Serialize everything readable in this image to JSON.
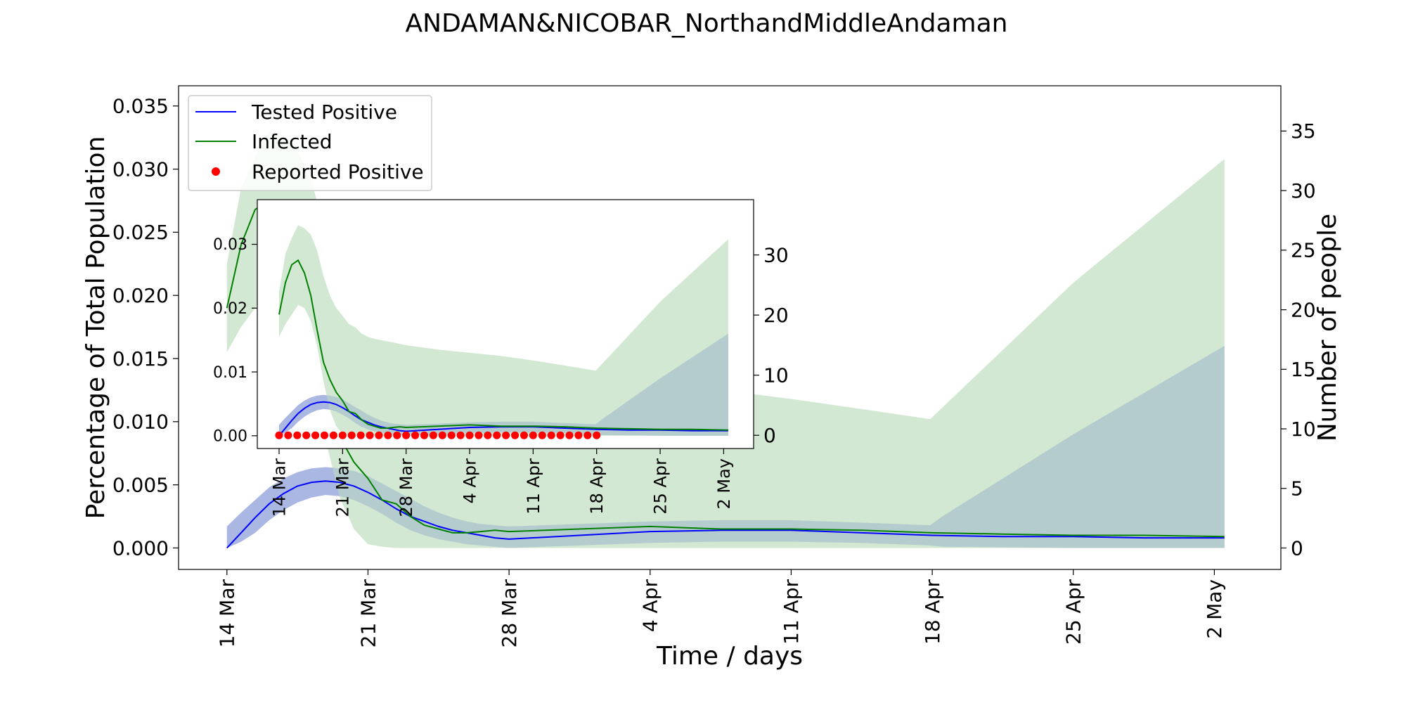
{
  "title": "ANDAMAN&NICOBAR_NorthandMiddleAndaman",
  "colors": {
    "tested": "#0000ff",
    "tested_band": "#b2b2ff",
    "infected": "#008000",
    "infected_band": "#cde5cd",
    "overlap_band": "#a2bbcb",
    "reported": "#ff0000"
  },
  "chart_data": [
    {
      "type": "line",
      "panel": "main",
      "title": "ANDAMAN&NICOBAR_NorthandMiddleAndaman",
      "xlabel": "Time / days",
      "ylabel": "Percentage of Total Population",
      "y2label": "Number of people",
      "x_ticks": [
        {
          "label": "14 Mar",
          "day": 0
        },
        {
          "label": "21 Mar",
          "day": 7
        },
        {
          "label": "28 Mar",
          "day": 14
        },
        {
          "label": "4 Apr",
          "day": 21
        },
        {
          "label": "11 Apr",
          "day": 28
        },
        {
          "label": "18 Apr",
          "day": 35
        },
        {
          "label": "25 Apr",
          "day": 42
        },
        {
          "label": "2 May",
          "day": 49
        }
      ],
      "xlim": [
        -2.4,
        52.3
      ],
      "ylim": [
        -0.0017,
        0.0366
      ],
      "y_ticks": [
        "0.000",
        "0.005",
        "0.010",
        "0.015",
        "0.020",
        "0.025",
        "0.030",
        "0.035"
      ],
      "y2lim": [
        -1.8,
        38.8
      ],
      "y2_ticks": [
        "0",
        "5",
        "10",
        "15",
        "20",
        "25",
        "30",
        "35"
      ],
      "legend": {
        "position": "top-left",
        "entries": [
          "Tested Positive",
          "Infected",
          "Reported Positive"
        ]
      },
      "series": [
        {
          "name": "Tested Positive",
          "color": "#0000ff",
          "x": [
            0,
            0.7,
            1.4,
            2.1,
            2.8,
            3.5,
            4.2,
            4.9,
            5.6,
            6.3,
            7,
            7.7,
            8.4,
            9.1,
            9.8,
            10.5,
            11.2,
            11.9,
            12.6,
            13.3,
            14,
            17.5,
            21,
            24.5,
            28,
            31.5,
            35,
            38.5,
            42,
            45.5,
            49.5
          ],
          "y": [
            0,
            0.0012,
            0.0024,
            0.0035,
            0.0043,
            0.0049,
            0.0052,
            0.0053,
            0.0052,
            0.0049,
            0.0044,
            0.0038,
            0.0031,
            0.0025,
            0.0021,
            0.0017,
            0.0014,
            0.0012,
            0.001,
            0.0008,
            0.0007,
            0.001,
            0.0013,
            0.0014,
            0.0014,
            0.0012,
            0.001,
            0.0009,
            0.0009,
            0.0008,
            0.0008
          ]
        },
        {
          "name": "Infected",
          "color": "#008000",
          "x": [
            0,
            0.7,
            1.4,
            2.1,
            2.8,
            3.5,
            4.2,
            4.9,
            5.6,
            6.3,
            7,
            7.7,
            8.4,
            9.1,
            9.8,
            10.5,
            11.2,
            11.9,
            12.6,
            13.3,
            14,
            17.5,
            21,
            24.5,
            28,
            31.5,
            35,
            38.5,
            42,
            45.5,
            49.5
          ],
          "y": [
            0.019,
            0.024,
            0.0268,
            0.0275,
            0.0255,
            0.022,
            0.0165,
            0.0115,
            0.0088,
            0.0068,
            0.0055,
            0.0038,
            0.0035,
            0.0025,
            0.0018,
            0.0015,
            0.0012,
            0.0012,
            0.0013,
            0.0014,
            0.0013,
            0.0015,
            0.0017,
            0.0015,
            0.0015,
            0.0014,
            0.0012,
            0.0011,
            0.001,
            0.001,
            0.0009
          ]
        }
      ],
      "bands": [
        {
          "of": "Tested Positive",
          "color": "#b2b2ff",
          "x": [
            0,
            0.7,
            1.4,
            2.1,
            2.8,
            3.5,
            4.2,
            4.9,
            5.6,
            6.3,
            7,
            7.7,
            8.4,
            9.1,
            9.8,
            10.5,
            11.2,
            11.9,
            12.6,
            13.3,
            14,
            17.5,
            21,
            24.5,
            28,
            31.5,
            34.9,
            35.5,
            42,
            49.5
          ],
          "upper": [
            0.0017,
            0.0028,
            0.0038,
            0.0048,
            0.0055,
            0.006,
            0.0063,
            0.0064,
            0.0063,
            0.0061,
            0.0057,
            0.0051,
            0.0045,
            0.0039,
            0.0033,
            0.0028,
            0.0024,
            0.0021,
            0.0019,
            0.0018,
            0.0017,
            0.0019,
            0.0021,
            0.0022,
            0.0022,
            0.002,
            0.0018,
            0.0025,
            0.009,
            0.016
          ],
          "lower": [
            0,
            0.0005,
            0.0012,
            0.0022,
            0.003,
            0.0036,
            0.004,
            0.0042,
            0.0041,
            0.0038,
            0.0033,
            0.0027,
            0.002,
            0.0014,
            0.001,
            0.0007,
            0.0005,
            0.0003,
            0.0002,
            0.0001,
            0,
            0.0002,
            0.0004,
            0.0005,
            0.0005,
            0.0004,
            0.0002,
            0.0001,
            0,
            0
          ]
        },
        {
          "of": "Infected",
          "color": "#cde5cd",
          "x": [
            0,
            0.7,
            1.4,
            2.1,
            2.8,
            3.5,
            4.2,
            4.9,
            5.6,
            6.3,
            7,
            7.7,
            8.4,
            9.1,
            9.8,
            10.5,
            11.2,
            11.9,
            12.6,
            13.3,
            14,
            17.5,
            21,
            24.5,
            28,
            31.5,
            34.9,
            42,
            49.5
          ],
          "upper": [
            0.0225,
            0.0285,
            0.031,
            0.033,
            0.0325,
            0.0315,
            0.029,
            0.025,
            0.022,
            0.02,
            0.0188,
            0.0175,
            0.017,
            0.016,
            0.0155,
            0.0152,
            0.015,
            0.0148,
            0.0146,
            0.0144,
            0.0142,
            0.0135,
            0.013,
            0.0125,
            0.0118,
            0.011,
            0.0102,
            0.021,
            0.0308
          ],
          "lower": [
            0.0155,
            0.0175,
            0.019,
            0.0205,
            0.02,
            0.018,
            0.014,
            0.0085,
            0.004,
            0.0015,
            0.0003,
            0.0001,
            0,
            0,
            0,
            0,
            0,
            0,
            0,
            0,
            0,
            0,
            0,
            0,
            0,
            0,
            0,
            0,
            0
          ]
        }
      ],
      "reported_positive": {
        "name": "Reported Positive",
        "color": "#ff0000",
        "x": [],
        "y": []
      }
    },
    {
      "type": "line",
      "panel": "inset",
      "xlabel": "",
      "ylabel": "",
      "x_ticks": [
        {
          "label": "14 Mar",
          "day": 0
        },
        {
          "label": "21 Mar",
          "day": 7
        },
        {
          "label": "28 Mar",
          "day": 14
        },
        {
          "label": "4 Apr",
          "day": 21
        },
        {
          "label": "11 Apr",
          "day": 28
        },
        {
          "label": "18 Apr",
          "day": 35
        },
        {
          "label": "25 Apr",
          "day": 42
        },
        {
          "label": "2 May",
          "day": 49
        }
      ],
      "xlim": [
        -2.4,
        52.3
      ],
      "ylim": [
        -0.002,
        0.037
      ],
      "y_ticks": [
        "0.00",
        "0.01",
        "0.02",
        "0.03"
      ],
      "y2lim": [
        -2.2,
        39.2
      ],
      "y2_ticks": [
        "0",
        "10",
        "20",
        "30"
      ],
      "series": [
        {
          "name": "Tested Positive",
          "color": "#0000ff",
          "x": [
            0,
            0.7,
            1.4,
            2.1,
            2.8,
            3.5,
            4.2,
            4.9,
            5.6,
            6.3,
            7,
            7.7,
            8.4,
            9.1,
            9.8,
            10.5,
            11.2,
            11.9,
            12.6,
            13.3,
            14,
            17.5,
            21,
            24.5,
            28,
            31.5,
            35,
            38.5,
            42,
            45.5,
            49.5
          ],
          "y": [
            0,
            0.0012,
            0.0024,
            0.0035,
            0.0043,
            0.0049,
            0.0052,
            0.0053,
            0.0052,
            0.0049,
            0.0044,
            0.0038,
            0.0031,
            0.0025,
            0.0021,
            0.0017,
            0.0014,
            0.0012,
            0.001,
            0.0008,
            0.0007,
            0.001,
            0.0013,
            0.0014,
            0.0014,
            0.0012,
            0.001,
            0.0009,
            0.0009,
            0.0008,
            0.0008
          ]
        },
        {
          "name": "Infected",
          "color": "#008000",
          "x": [
            0,
            0.7,
            1.4,
            2.1,
            2.8,
            3.5,
            4.2,
            4.9,
            5.6,
            6.3,
            7,
            7.7,
            8.4,
            9.1,
            9.8,
            10.5,
            11.2,
            11.9,
            12.6,
            13.3,
            14,
            17.5,
            21,
            24.5,
            28,
            31.5,
            35,
            38.5,
            42,
            45.5,
            49.5
          ],
          "y": [
            0.019,
            0.024,
            0.0268,
            0.0275,
            0.0255,
            0.022,
            0.0165,
            0.0115,
            0.0088,
            0.0068,
            0.0055,
            0.0038,
            0.0035,
            0.0025,
            0.0018,
            0.0015,
            0.0012,
            0.0012,
            0.0013,
            0.0014,
            0.0013,
            0.0015,
            0.0017,
            0.0015,
            0.0015,
            0.0014,
            0.0012,
            0.0011,
            0.001,
            0.001,
            0.0009
          ]
        }
      ],
      "bands": [
        {
          "of": "Tested Positive",
          "color": "#b2b2ff",
          "x": [
            0,
            0.7,
            1.4,
            2.1,
            2.8,
            3.5,
            4.2,
            4.9,
            5.6,
            6.3,
            7,
            7.7,
            8.4,
            9.1,
            9.8,
            10.5,
            11.2,
            11.9,
            12.6,
            13.3,
            14,
            17.5,
            21,
            24.5,
            28,
            31.5,
            34.9,
            35.5,
            42,
            49.5
          ],
          "upper": [
            0.0017,
            0.0028,
            0.0038,
            0.0048,
            0.0055,
            0.006,
            0.0063,
            0.0064,
            0.0063,
            0.0061,
            0.0057,
            0.0051,
            0.0045,
            0.0039,
            0.0033,
            0.0028,
            0.0024,
            0.0021,
            0.0019,
            0.0018,
            0.0017,
            0.0019,
            0.0021,
            0.0022,
            0.0022,
            0.002,
            0.0018,
            0.0025,
            0.009,
            0.016
          ],
          "lower": [
            0,
            0.0005,
            0.0012,
            0.0022,
            0.003,
            0.0036,
            0.004,
            0.0042,
            0.0041,
            0.0038,
            0.0033,
            0.0027,
            0.002,
            0.0014,
            0.001,
            0.0007,
            0.0005,
            0.0003,
            0.0002,
            0.0001,
            0,
            0.0002,
            0.0004,
            0.0005,
            0.0005,
            0.0004,
            0.0002,
            0.0001,
            0,
            0
          ]
        },
        {
          "of": "Infected",
          "color": "#cde5cd",
          "x": [
            0,
            0.7,
            1.4,
            2.1,
            2.8,
            3.5,
            4.2,
            4.9,
            5.6,
            6.3,
            7,
            7.7,
            8.4,
            9.1,
            9.8,
            10.5,
            11.2,
            11.9,
            12.6,
            13.3,
            14,
            17.5,
            21,
            24.5,
            28,
            31.5,
            34.9,
            42,
            49.5
          ],
          "upper": [
            0.0225,
            0.0285,
            0.031,
            0.033,
            0.0325,
            0.0315,
            0.029,
            0.025,
            0.022,
            0.02,
            0.0188,
            0.0175,
            0.017,
            0.016,
            0.0155,
            0.0152,
            0.015,
            0.0148,
            0.0146,
            0.0144,
            0.0142,
            0.0135,
            0.013,
            0.0125,
            0.0118,
            0.011,
            0.0102,
            0.021,
            0.0308
          ],
          "lower": [
            0.0155,
            0.0175,
            0.019,
            0.0205,
            0.02,
            0.018,
            0.014,
            0.0085,
            0.004,
            0.0015,
            0.0003,
            0.0001,
            0,
            0,
            0,
            0,
            0,
            0,
            0,
            0,
            0,
            0,
            0,
            0,
            0,
            0,
            0,
            0,
            0
          ]
        }
      ],
      "reported_positive": {
        "name": "Reported Positive",
        "color": "#ff0000",
        "x": [
          0,
          1,
          2,
          3,
          4,
          5,
          6,
          7,
          8,
          9,
          10,
          11,
          12,
          13,
          14,
          15,
          16,
          17,
          18,
          19,
          20,
          21,
          22,
          23,
          24,
          25,
          26,
          27,
          28,
          29,
          30,
          31,
          32,
          33,
          34,
          35
        ],
        "y": [
          0,
          0,
          0,
          0,
          0,
          0,
          0,
          0,
          0,
          0,
          0,
          0,
          0,
          0,
          0,
          0,
          0,
          0,
          0,
          0,
          0,
          0,
          0,
          0,
          0,
          0,
          0,
          0,
          0,
          0,
          0,
          0,
          0,
          0,
          0,
          0
        ]
      }
    }
  ]
}
